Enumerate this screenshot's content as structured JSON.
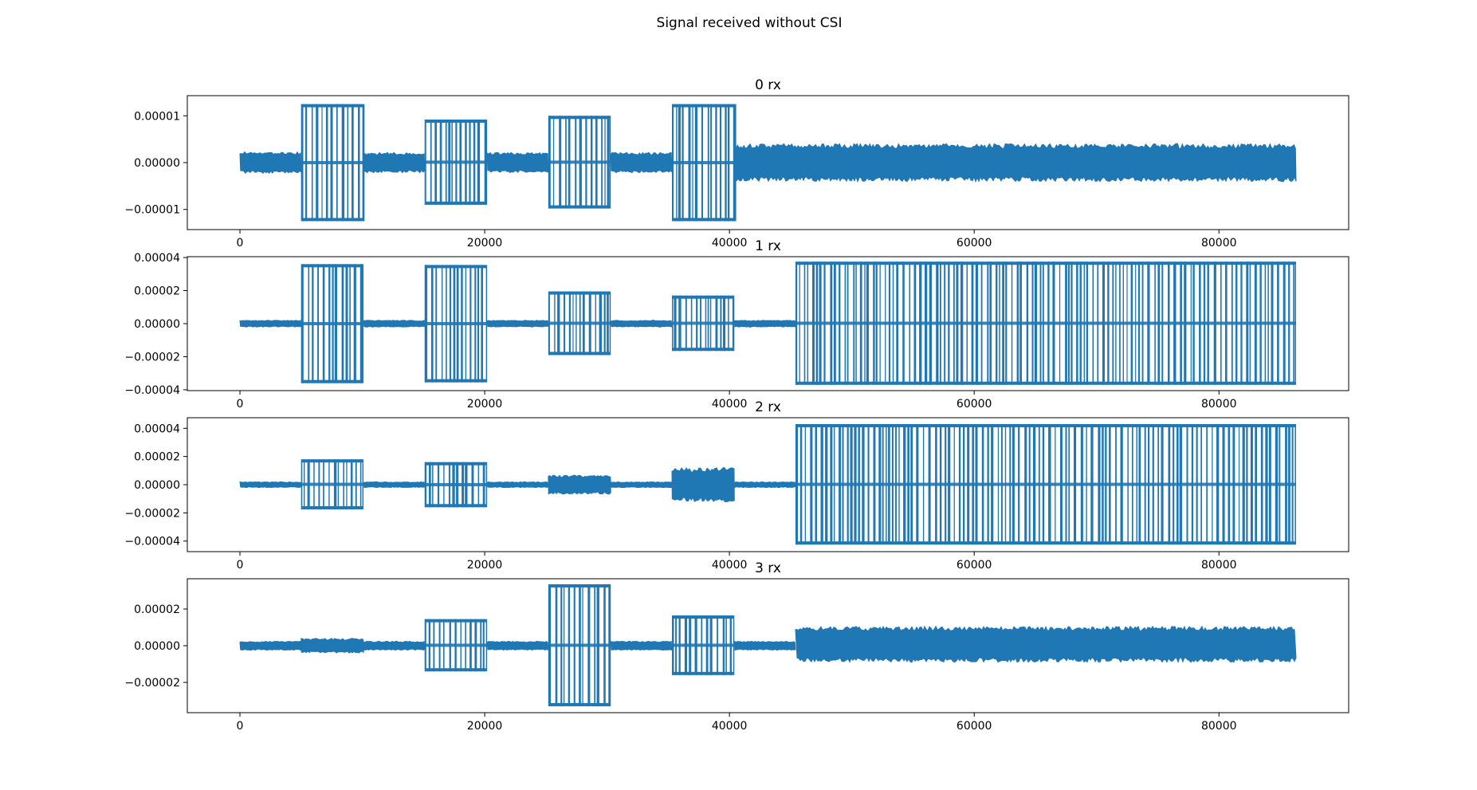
{
  "suptitle": "Signal received without CSI",
  "colors": {
    "series": "#1f77b4",
    "axes": "#000000",
    "background": "#ffffff"
  },
  "chart_data": [
    {
      "type": "line",
      "title": "0 rx",
      "xlabel": "",
      "ylabel": "",
      "xlim": [
        -4300,
        90600
      ],
      "ylim": [
        -1.43e-05,
        1.43e-05
      ],
      "xticks": [
        0,
        20000,
        40000,
        60000,
        80000
      ],
      "xtick_labels": [
        "0",
        "20000",
        "40000",
        "60000",
        "80000"
      ],
      "yticks": [
        -1e-05,
        0,
        1e-05
      ],
      "ytick_labels": [
        "−0.00001",
        "0.00000",
        "0.00001"
      ],
      "grid": false,
      "series": [
        {
          "segments": [
            {
              "x": [
                0,
                5000
              ],
              "lo": -1.7e-06,
              "hi": 1.7e-06
            },
            {
              "x": [
                5000,
                10100
              ],
              "lo": -1.25e-05,
              "hi": 1.25e-05
            },
            {
              "x": [
                10100,
                15100
              ],
              "lo": -1.6e-06,
              "hi": 1.6e-06
            },
            {
              "x": [
                15100,
                20200
              ],
              "lo": -9e-06,
              "hi": 9.2e-06
            },
            {
              "x": [
                20200,
                25200
              ],
              "lo": -1.6e-06,
              "hi": 1.6e-06
            },
            {
              "x": [
                25200,
                30300
              ],
              "lo": -9.8e-06,
              "hi": 1e-05
            },
            {
              "x": [
                30300,
                35300
              ],
              "lo": -1.6e-06,
              "hi": 1.6e-06
            },
            {
              "x": [
                35300,
                40400
              ],
              "lo": -1.25e-05,
              "hi": 1.25e-05
            },
            {
              "x": [
                40400,
                86300
              ],
              "lo": -3e-06,
              "hi": 3e-06
            }
          ]
        }
      ]
    },
    {
      "type": "line",
      "title": "1 rx",
      "xlabel": "",
      "ylabel": "",
      "xlim": [
        -4300,
        90600
      ],
      "ylim": [
        -4.05e-05,
        4.05e-05
      ],
      "xticks": [
        0,
        20000,
        40000,
        60000,
        80000
      ],
      "xtick_labels": [
        "0",
        "20000",
        "40000",
        "60000",
        "80000"
      ],
      "yticks": [
        -4e-05,
        -2e-05,
        0,
        2e-05,
        4e-05
      ],
      "ytick_labels": [
        "−0.00004",
        "−0.00002",
        "0.00000",
        "0.00002",
        "0.00004"
      ],
      "grid": false,
      "series": [
        {
          "segments": [
            {
              "x": [
                0,
                5000
              ],
              "lo": -1.5e-06,
              "hi": 1.5e-06
            },
            {
              "x": [
                5000,
                10100
              ],
              "lo": -3.6e-05,
              "hi": 3.6e-05
            },
            {
              "x": [
                10100,
                15100
              ],
              "lo": -1.5e-06,
              "hi": 1.5e-06
            },
            {
              "x": [
                15100,
                20200
              ],
              "lo": -3.55e-05,
              "hi": 3.55e-05
            },
            {
              "x": [
                20200,
                25200
              ],
              "lo": -1.5e-06,
              "hi": 1.5e-06
            },
            {
              "x": [
                25200,
                30300
              ],
              "lo": -1.9e-05,
              "hi": 1.95e-05
            },
            {
              "x": [
                30300,
                35300
              ],
              "lo": -1.5e-06,
              "hi": 1.5e-06
            },
            {
              "x": [
                35300,
                40400
              ],
              "lo": -1.65e-05,
              "hi": 1.7e-05
            },
            {
              "x": [
                40400,
                45400
              ],
              "lo": -1.5e-06,
              "hi": 1.5e-06
            },
            {
              "x": [
                45400,
                86300
              ],
              "lo": -3.7e-05,
              "hi": 3.75e-05
            }
          ]
        }
      ]
    },
    {
      "type": "line",
      "title": "2 rx",
      "xlabel": "",
      "ylabel": "",
      "xlim": [
        -4300,
        90600
      ],
      "ylim": [
        -4.75e-05,
        4.75e-05
      ],
      "xticks": [
        0,
        20000,
        40000,
        60000,
        80000
      ],
      "xtick_labels": [
        "0",
        "20000",
        "40000",
        "60000",
        "80000"
      ],
      "yticks": [
        -4e-05,
        -2e-05,
        0,
        2e-05,
        4e-05
      ],
      "ytick_labels": [
        "−0.00004",
        "−0.00002",
        "0.00000",
        "0.00002",
        "0.00004"
      ],
      "grid": false,
      "series": [
        {
          "segments": [
            {
              "x": [
                0,
                5000
              ],
              "lo": -1.5e-06,
              "hi": 1.5e-06
            },
            {
              "x": [
                5000,
                10100
              ],
              "lo": -1.75e-05,
              "hi": 1.8e-05
            },
            {
              "x": [
                10100,
                15100
              ],
              "lo": -1.5e-06,
              "hi": 1.5e-06
            },
            {
              "x": [
                15100,
                20200
              ],
              "lo": -1.6e-05,
              "hi": 1.6e-05
            },
            {
              "x": [
                20200,
                25200
              ],
              "lo": -1.5e-06,
              "hi": 1.5e-06
            },
            {
              "x": [
                25200,
                30300
              ],
              "lo": -5e-06,
              "hi": 5e-06
            },
            {
              "x": [
                30300,
                35300
              ],
              "lo": -1.5e-06,
              "hi": 1.5e-06
            },
            {
              "x": [
                35300,
                40400
              ],
              "lo": -9e-06,
              "hi": 9e-06
            },
            {
              "x": [
                40400,
                45400
              ],
              "lo": -1.5e-06,
              "hi": 1.5e-06
            },
            {
              "x": [
                45400,
                86300
              ],
              "lo": -4.25e-05,
              "hi": 4.3e-05
            }
          ]
        }
      ]
    },
    {
      "type": "line",
      "title": "3 rx",
      "xlabel": "",
      "ylabel": "",
      "xlim": [
        -4300,
        90600
      ],
      "ylim": [
        -3.65e-05,
        3.65e-05
      ],
      "xticks": [
        0,
        20000,
        40000,
        60000,
        80000
      ],
      "xtick_labels": [
        "0",
        "20000",
        "40000",
        "60000",
        "80000"
      ],
      "yticks": [
        -2e-05,
        0,
        2e-05
      ],
      "ytick_labels": [
        "−0.00002",
        "0.00000",
        "0.00002"
      ],
      "grid": false,
      "series": [
        {
          "segments": [
            {
              "x": [
                0,
                5000
              ],
              "lo": -1.8e-06,
              "hi": 1.8e-06
            },
            {
              "x": [
                5000,
                10100
              ],
              "lo": -3e-06,
              "hi": 3e-06
            },
            {
              "x": [
                10100,
                15100
              ],
              "lo": -1.8e-06,
              "hi": 1.8e-06
            },
            {
              "x": [
                15100,
                20200
              ],
              "lo": -1.4e-05,
              "hi": 1.45e-05
            },
            {
              "x": [
                20200,
                25200
              ],
              "lo": -1.8e-06,
              "hi": 1.8e-06
            },
            {
              "x": [
                25200,
                30300
              ],
              "lo": -3.3e-05,
              "hi": 3.35e-05
            },
            {
              "x": [
                30300,
                35300
              ],
              "lo": -1.8e-06,
              "hi": 1.8e-06
            },
            {
              "x": [
                35300,
                40400
              ],
              "lo": -1.6e-05,
              "hi": 1.65e-05
            },
            {
              "x": [
                40400,
                45400
              ],
              "lo": -1.8e-06,
              "hi": 1.8e-06
            },
            {
              "x": [
                45400,
                86300
              ],
              "lo": -6.5e-06,
              "hi": 8e-06
            }
          ]
        }
      ]
    }
  ]
}
